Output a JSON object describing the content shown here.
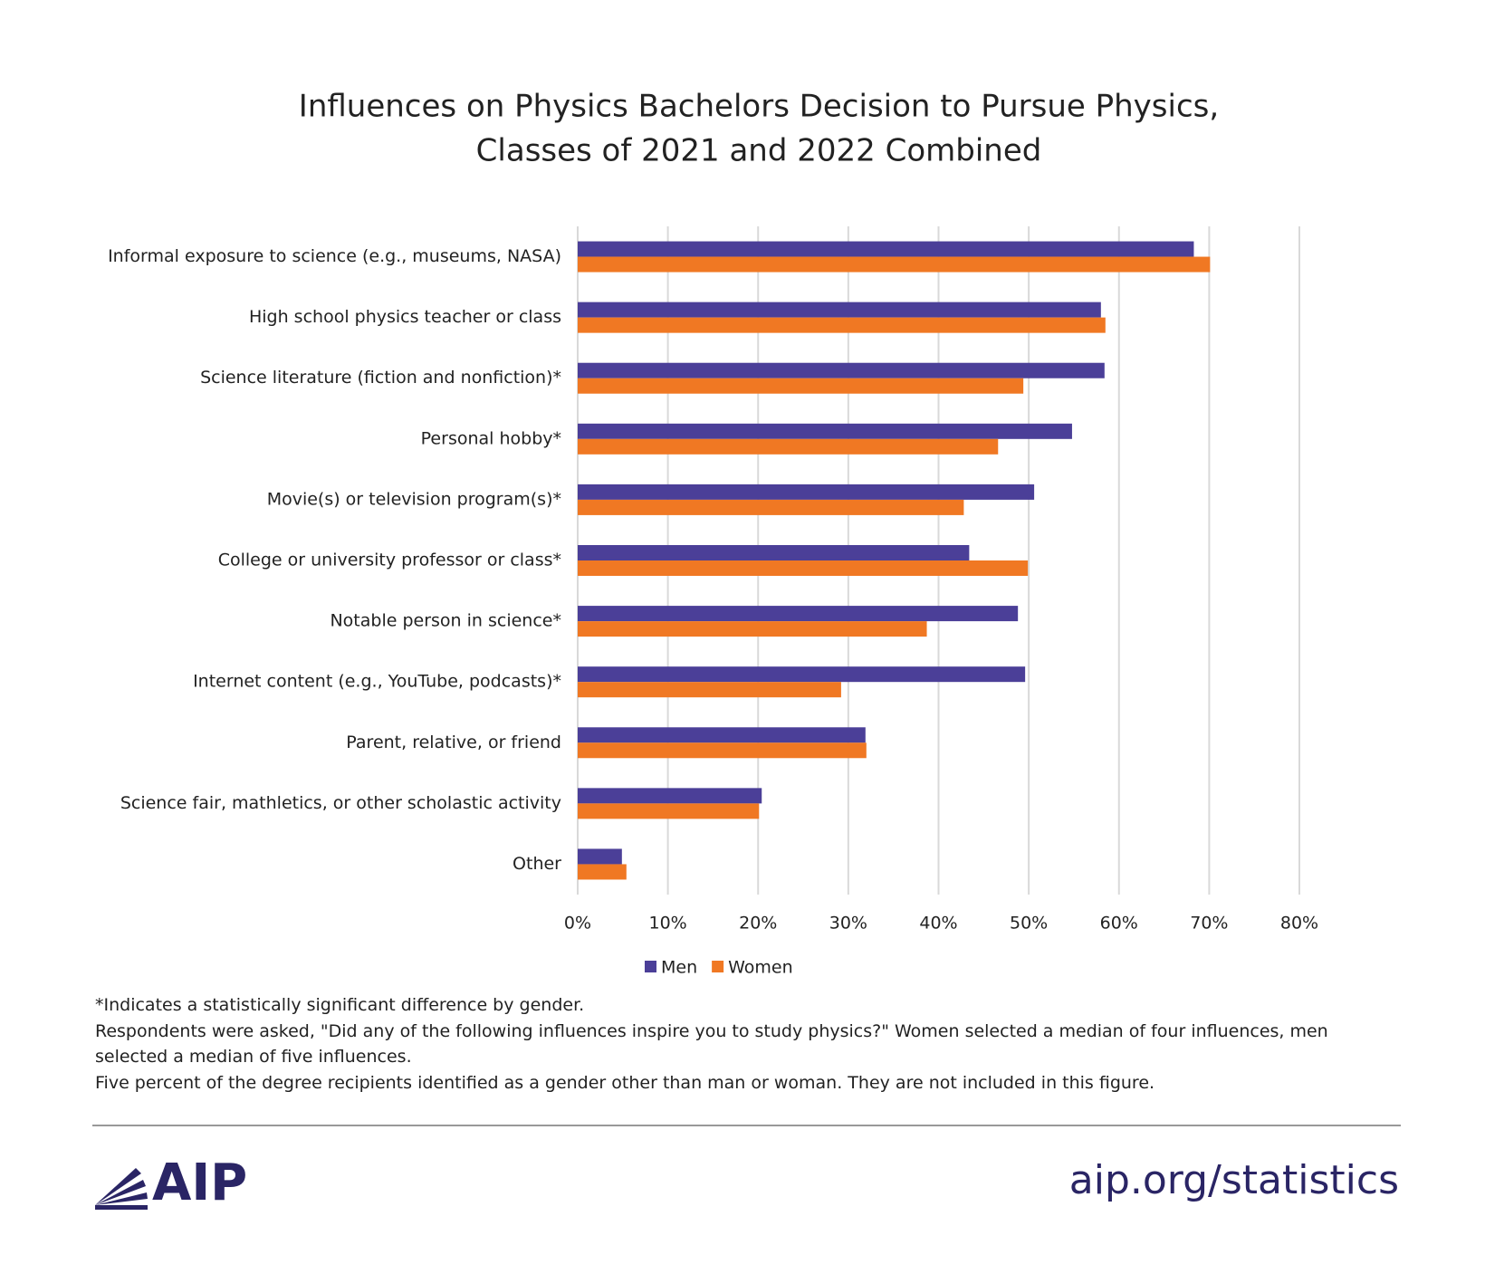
{
  "chart_data": {
    "type": "hbar",
    "title": [
      "Influences on Physics Bachelors Decision to Pursue Physics,",
      "Classes of 2021 and 2022 Combined"
    ],
    "categories": [
      "Informal exposure to science (e.g., museums, NASA)",
      "High school physics teacher or class",
      "Science literature (fiction and nonfiction)*",
      "Personal hobby*",
      "Movie(s) or television program(s)*",
      "College or university professor or class*",
      "Notable person in science*",
      "Internet content (e.g., YouTube, podcasts)*",
      "Parent, relative, or friend",
      "Science fair, mathletics, or other scholastic activity",
      "Other"
    ],
    "series": [
      {
        "name": "Men",
        "color": "#4b3f98",
        "values": [
          68.3,
          58.0,
          58.4,
          54.8,
          50.6,
          43.4,
          48.8,
          49.6,
          31.9,
          20.4,
          4.9
        ]
      },
      {
        "name": "Women",
        "color": "#f07823",
        "values": [
          70.1,
          58.5,
          49.4,
          46.6,
          42.8,
          49.9,
          38.7,
          29.2,
          32.0,
          20.1,
          5.4
        ]
      }
    ],
    "xlim": [
      0,
      80
    ],
    "xticks": [
      {
        "value": 0,
        "label": "0%"
      },
      {
        "value": 10,
        "label": "10%"
      },
      {
        "value": 20,
        "label": "20%"
      },
      {
        "value": 30,
        "label": "30%"
      },
      {
        "value": 40,
        "label": "40%"
      },
      {
        "value": 50,
        "label": "50%"
      },
      {
        "value": 60,
        "label": "60%"
      },
      {
        "value": 70,
        "label": "70%"
      },
      {
        "value": 80,
        "label": "80%"
      }
    ],
    "grid": true,
    "legend": "bottom"
  },
  "notes": [
    "*Indicates a statistically significant difference by gender.",
    "Respondents were asked, \"Did any of the following influences inspire you to study physics?\" Women selected a median of four influences, men selected a median of five influences.",
    "Five percent of the degree recipients identified as a gender other than man or woman. They are not included in this figure."
  ],
  "footer": {
    "logo": "AIP",
    "url": "aip.org/statistics"
  }
}
